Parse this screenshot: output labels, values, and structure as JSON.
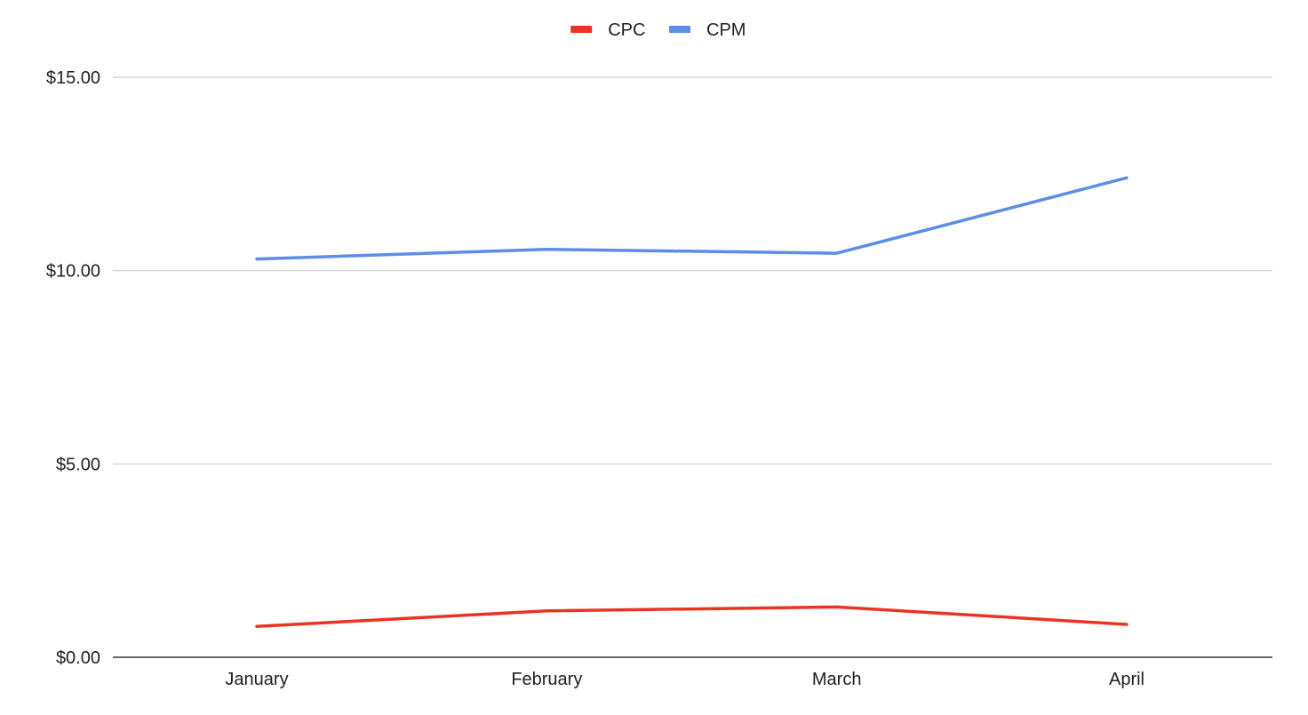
{
  "chart_data": {
    "type": "line",
    "title": "",
    "xlabel": "",
    "ylabel": "",
    "categories": [
      "January",
      "February",
      "March",
      "April"
    ],
    "series": [
      {
        "name": "CPC",
        "color": "#ea3323",
        "values": [
          0.8,
          1.2,
          1.3,
          0.85
        ]
      },
      {
        "name": "CPM",
        "color": "#5b8ee6",
        "values": [
          10.3,
          10.55,
          10.45,
          12.4
        ]
      }
    ],
    "ylim": [
      0,
      15
    ],
    "yticks": [
      {
        "value": 0,
        "label": "$0.00"
      },
      {
        "value": 5,
        "label": "$5.00"
      },
      {
        "value": 10,
        "label": "$10.00"
      },
      {
        "value": 15,
        "label": "$15.00"
      }
    ],
    "grid": true,
    "legend_position": "top-center"
  }
}
